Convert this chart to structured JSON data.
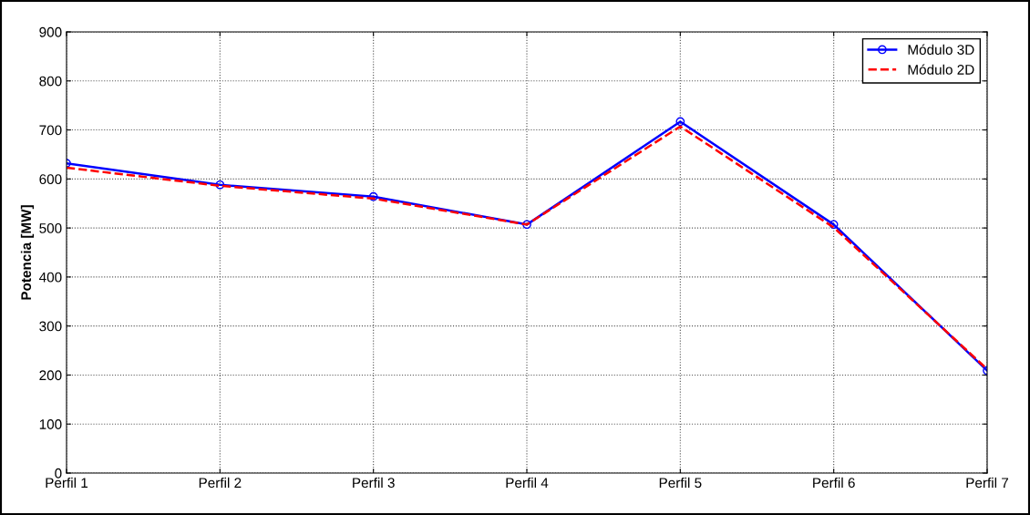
{
  "chart_data": {
    "type": "line",
    "ylabel": "Potencia [MW]",
    "categories": [
      "Perfil 1",
      "Perfil 2",
      "Perfil 3",
      "Perfil 4",
      "Perfil 5",
      "Perfil 6",
      "Perfil 7"
    ],
    "series": [
      {
        "name": "Módulo 3D",
        "color": "#0000ff",
        "values": [
          632,
          588,
          564,
          507,
          717,
          507,
          209
        ],
        "marker": "circle",
        "line_style": "solid"
      },
      {
        "name": "Módulo 2D",
        "color": "#ff0000",
        "values": [
          623,
          586,
          560,
          507,
          707,
          501,
          212
        ],
        "marker": "none",
        "line_style": "dashed"
      }
    ],
    "ylim": [
      0,
      900
    ],
    "yticks": [
      0,
      100,
      200,
      300,
      400,
      500,
      600,
      700,
      800,
      900
    ],
    "grid": true,
    "legend": "top right"
  }
}
